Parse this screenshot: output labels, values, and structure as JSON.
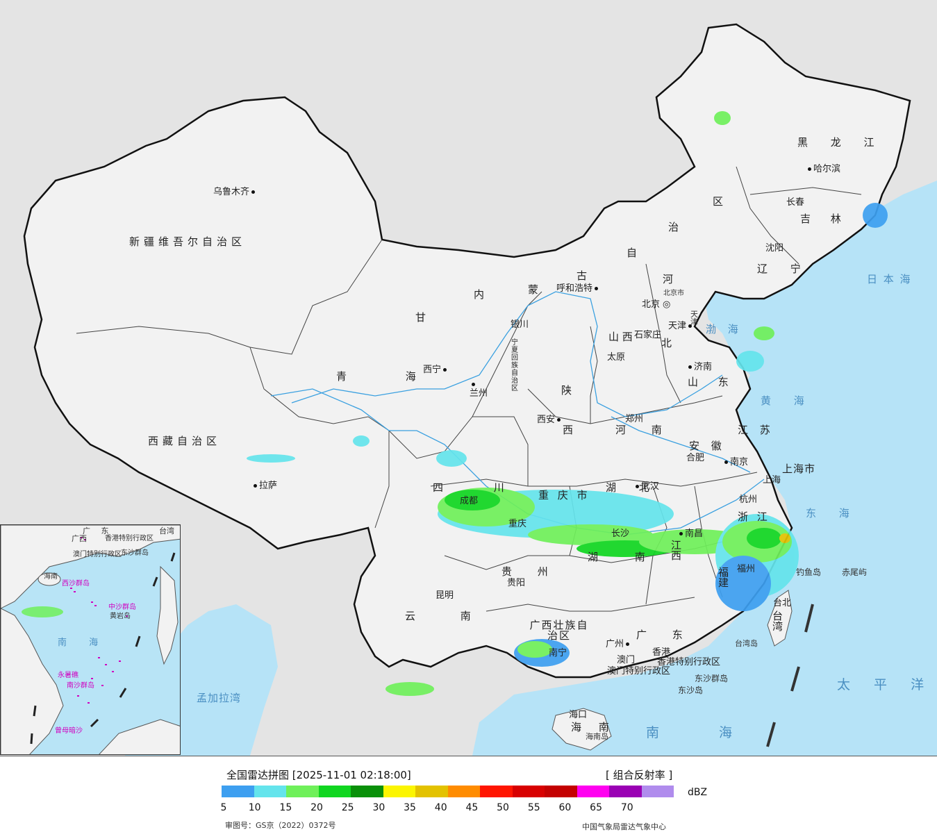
{
  "legend": {
    "title": "全国雷达拼图 [2025-11-01 02:18:00]",
    "product": "[ 组合反射率 ]",
    "unit": "dBZ",
    "ticks": [
      "5",
      "10",
      "15",
      "20",
      "25",
      "30",
      "35",
      "40",
      "45",
      "50",
      "55",
      "60",
      "65",
      "70"
    ],
    "colors": [
      "#3d9ff0",
      "#64e4ec",
      "#6ff05a",
      "#10d620",
      "#099009",
      "#fbf502",
      "#e3c200",
      "#ff8c00",
      "#ff1500",
      "#d80000",
      "#c40000",
      "#ff00f0",
      "#9a00b4",
      "#b08ced"
    ],
    "approval": "审图号：GS京（2022）0372号",
    "agency": "中国气象局雷达气象中心"
  },
  "map": {
    "provinces": {
      "xinjiang": "新疆维吾尔自治区",
      "xizang": "西藏自治区",
      "qinghai": "青 海",
      "gansu": "甘",
      "neimenggu_chars": [
        "内",
        "蒙",
        "古",
        "自",
        "治",
        "区"
      ],
      "heilongjiang": "黑 龙 江",
      "jilin": "吉 林",
      "liaoning": "辽 宁",
      "hebei": "北",
      "he": "河",
      "shanxi_v": "山 西",
      "shaanxi": "陕",
      "xi": "西",
      "shandong": "山 东",
      "henan": "河 南",
      "jiangsu": "江 苏",
      "anhui": "安 徽",
      "hubei": "湖 北",
      "sichuan": "四 川",
      "chongqing": "重 庆 市",
      "guizhou": "贵 州",
      "yunnan": "云 南",
      "guangxi": "广西壮族自治区",
      "guangdong": "广 东",
      "hunan": "湖 南",
      "jiangxi": "江 西",
      "zhejiang": "浙 江",
      "fujian": "福 建",
      "taiwan": "台 湾",
      "shanghai": "上海市",
      "hainan": "海 南",
      "ningxia": "宁夏回族自治区",
      "tianjin": "天津",
      "hk": "香港特别行政区",
      "macau": "澳门特别行政区",
      "beijing": "北京市"
    },
    "cities": {
      "urumqi": "乌鲁木齐",
      "lhasa": "拉萨",
      "xining": "西宁",
      "lanzhou": "兰州",
      "yinchuan": "银川",
      "hohhot": "呼和浩特",
      "beijing": "北京",
      "tianjin": "天津",
      "shijiazhuang": "石家庄",
      "taiyuan": "太原",
      "jinan": "济南",
      "zhengzhou": "郑州",
      "xian": "西安",
      "hefei": "合肥",
      "nanjing": "南京",
      "shanghai": "上海",
      "hangzhou": "杭州",
      "wuhan": "武汉",
      "changsha": "长沙",
      "nanchang": "南昌",
      "fuzhou": "福州",
      "chengdu": "成都",
      "chongqing": "重庆",
      "guiyang": "贵阳",
      "kunming": "昆明",
      "nanning": "南宁",
      "guangzhou": "广州",
      "hongkong": "香港",
      "macau": "澳门",
      "haikou": "海口",
      "taipei": "台北",
      "harbin": "哈尔滨",
      "changchun": "长春",
      "shenyang": "沈阳"
    },
    "seas": {
      "bohai": "渤 海",
      "huanghai": "黄 海",
      "donghai": "东 海",
      "nanhai": "南 海",
      "riben": "日 本 海",
      "taiping": "太 平 洋",
      "mengjiala": "孟加拉湾"
    },
    "islands": {
      "diaoyu": "钓鱼岛",
      "chiwei": "赤尾屿",
      "taiwan_dao": "台湾岛",
      "dongsha_qd": "东沙群岛",
      "dongsha_dao": "东沙岛",
      "hainan_dao": "海南岛"
    },
    "inset": {
      "nanhai": "南 海",
      "guangdong": "广 东",
      "guangxi": "广西",
      "hk": "香港特别行政区",
      "macau": "澳门特别行政区",
      "dongsha": "东沙群岛",
      "xisha": "西沙群岛",
      "zhongsha": "中沙群岛",
      "huangyan": "黄岩岛",
      "nansha": "南沙群岛",
      "zengmu": "曾母暗沙",
      "yongshu": "永暑礁",
      "taiwan": "台湾",
      "hainan": "海南"
    }
  }
}
